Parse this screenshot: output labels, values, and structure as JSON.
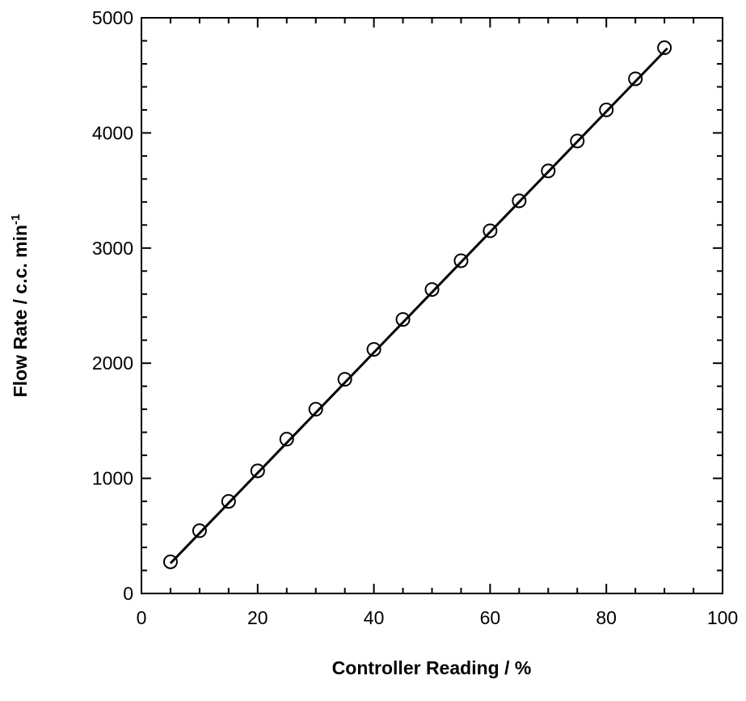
{
  "chart_data": {
    "type": "scatter",
    "xlabel": "Controller Reading  /  %",
    "ylabel_main": "Flow Rate  /  c.c.  min",
    "ylabel_sup": "-1",
    "xlim": [
      0,
      100
    ],
    "ylim": [
      0,
      5000
    ],
    "x_ticks": [
      "0",
      "20",
      "40",
      "60",
      "80",
      "100"
    ],
    "y_ticks": [
      "0",
      "1000",
      "2000",
      "3000",
      "4000",
      "5000"
    ],
    "grid": false,
    "legend": "none",
    "series": [
      {
        "marker": "open-circle",
        "x": [
          5,
          10,
          15,
          20,
          25,
          30,
          35,
          40,
          45,
          50,
          55,
          60,
          65,
          70,
          75,
          80,
          85,
          90
        ],
        "y": [
          275,
          545,
          800,
          1065,
          1340,
          1600,
          1860,
          2120,
          2380,
          2640,
          2890,
          3150,
          3410,
          3670,
          3930,
          4200,
          4470,
          4740
        ]
      }
    ],
    "fit_line": {
      "x": [
        5,
        90.5
      ],
      "y": [
        262,
        4735
      ]
    }
  }
}
